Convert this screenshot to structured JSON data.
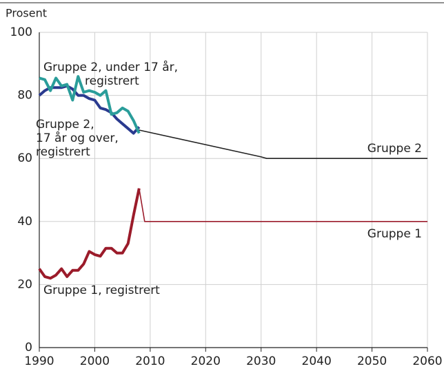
{
  "chart_data": {
    "type": "line",
    "y_label": "Prosent",
    "xlim": [
      1990,
      2060
    ],
    "xticks": [
      1990,
      2000,
      2010,
      2020,
      2030,
      2040,
      2050,
      2060
    ],
    "ylim": [
      0,
      100
    ],
    "yticks": [
      0,
      20,
      40,
      60,
      80,
      100
    ],
    "grid": true,
    "series": [
      {
        "name": [
          "Gruppe 1, registrert"
        ],
        "color": "#9b1b2a",
        "width": 4,
        "x": [
          1990,
          1991,
          1992,
          1993,
          1994,
          1995,
          1996,
          1997,
          1998,
          1999,
          2000,
          2001,
          2002,
          2003,
          2004,
          2005,
          2006,
          2007,
          2008
        ],
        "values": [
          25,
          22.5,
          22,
          23,
          25,
          22.5,
          24.5,
          24.5,
          26.5,
          30.5,
          29.5,
          29,
          31.5,
          31.5,
          30,
          30,
          33,
          42,
          50.5
        ]
      },
      {
        "name": [
          "Gruppe 1"
        ],
        "color": "#9b1b2a",
        "width": 1.6,
        "x": [
          2008,
          2009,
          2060
        ],
        "values": [
          50.5,
          40,
          40
        ]
      },
      {
        "name": [
          "Gruppe 2,",
          "17 år og over,",
          "registrert"
        ],
        "color": "#2a3a8f",
        "width": 4,
        "x": [
          1990,
          1991,
          1992,
          1993,
          1994,
          1995,
          1996,
          1997,
          1998,
          1999,
          2000,
          2001,
          2002,
          2003,
          2004,
          2005,
          2006,
          2007,
          2008
        ],
        "values": [
          80,
          81.5,
          82.5,
          82.5,
          82.5,
          83,
          82,
          80,
          80,
          79,
          78.5,
          76,
          75.5,
          74.5,
          72.5,
          71,
          69.5,
          68,
          70
        ]
      },
      {
        "name": [
          "Gruppe 2, under 17 år,",
          "registrert"
        ],
        "color": "#2a9d9a",
        "width": 4,
        "x": [
          1990,
          1991,
          1992,
          1993,
          1994,
          1995,
          1996,
          1997,
          1998,
          1999,
          2000,
          2001,
          2002,
          2003,
          2004,
          2005,
          2006,
          2007,
          2008
        ],
        "values": [
          85.5,
          85,
          81.5,
          85.5,
          83,
          83.5,
          78.5,
          86,
          81,
          81.5,
          81,
          80,
          81.5,
          74,
          74.5,
          76,
          75,
          72,
          68
        ]
      },
      {
        "name": [
          "Gruppe 2"
        ],
        "color": "#222222",
        "width": 1.6,
        "x": [
          2008,
          2030,
          2031,
          2060
        ],
        "values": [
          69,
          60.5,
          60,
          60
        ]
      }
    ]
  }
}
